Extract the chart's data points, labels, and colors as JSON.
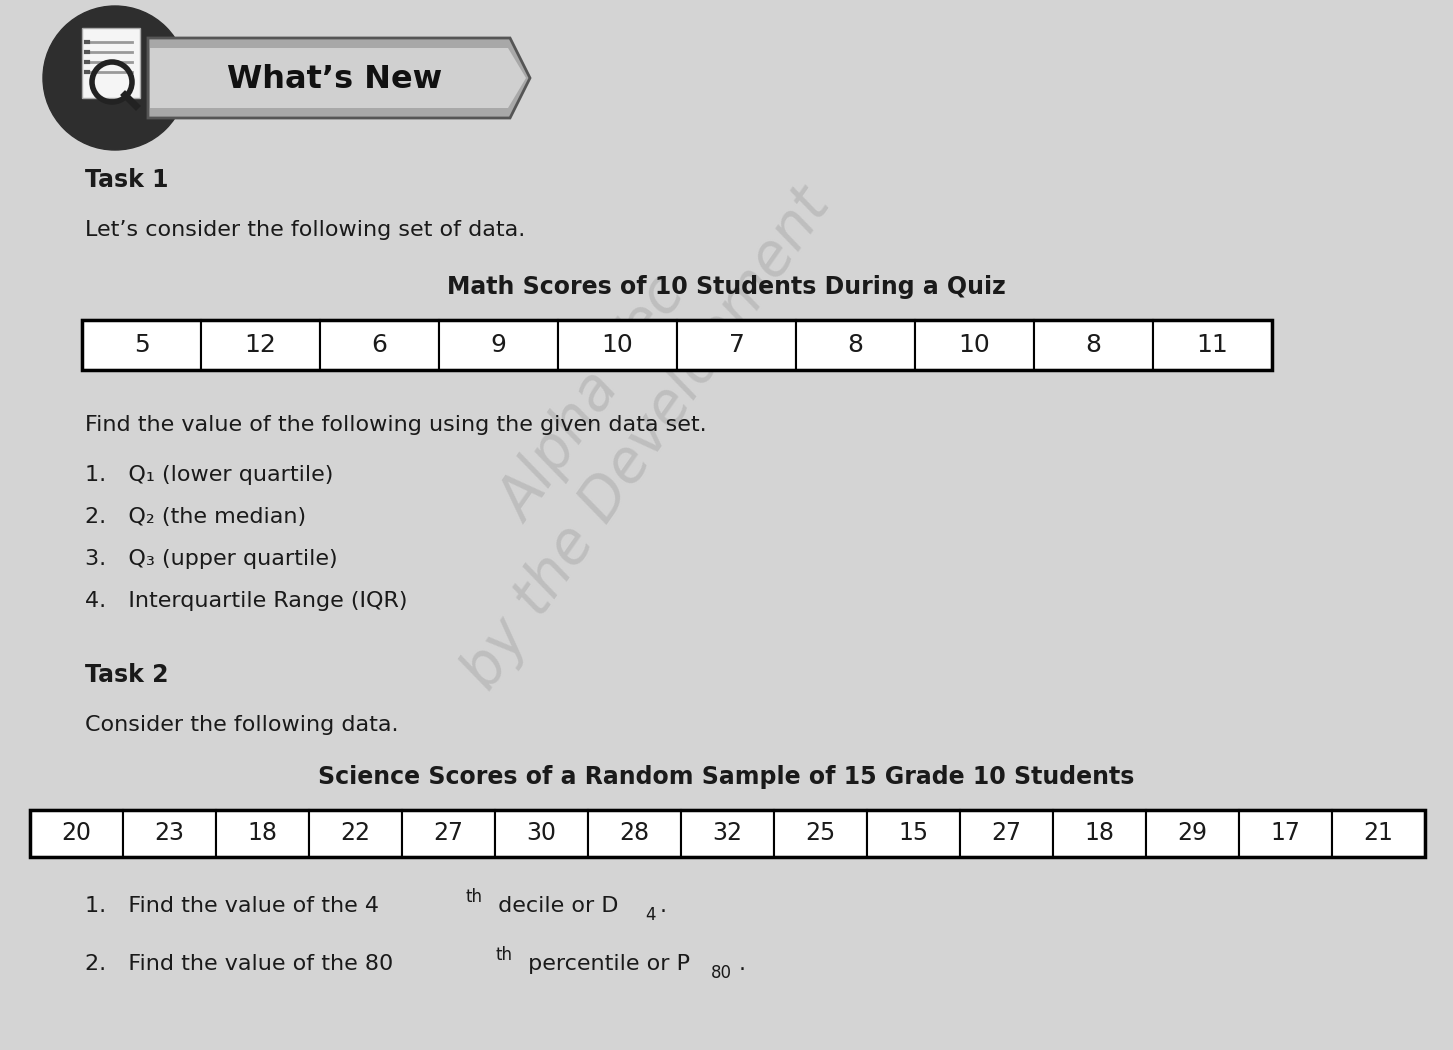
{
  "bg_color": "#d4d4d4",
  "header_text": "What’s New",
  "task1_label": "Task 1",
  "task1_intro": "Let’s consider the following set of data.",
  "task1_table_title": "Math Scores of 10 Students During a Quiz",
  "task1_data": [
    5,
    12,
    6,
    9,
    10,
    7,
    8,
    10,
    8,
    11
  ],
  "task1_instruction": "Find the value of the following using the given data set.",
  "task1_items": [
    "Q₁ (lower quartile)",
    "Q₂ (the median)",
    "Q₃ (upper quartile)",
    "Interquartile Range (IQR)"
  ],
  "task2_label": "Task 2",
  "task2_intro": "Consider the following data.",
  "task2_table_title": "Science Scores of a Random Sample of 15 Grade 10 Students",
  "task2_data": [
    20,
    23,
    18,
    22,
    27,
    30,
    28,
    32,
    25,
    15,
    27,
    18,
    29,
    17,
    21
  ],
  "text_color": "#1a1a1a",
  "watermark_color": "#b0b0b0"
}
